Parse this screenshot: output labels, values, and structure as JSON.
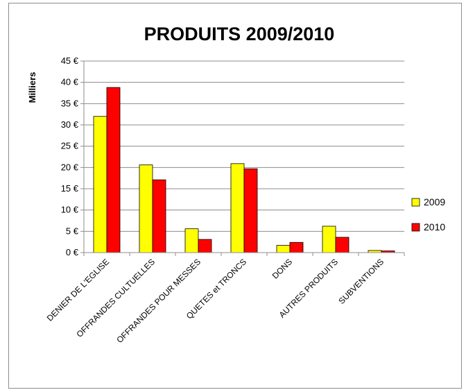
{
  "chart_data": {
    "type": "bar",
    "title": "PRODUITS 2009/2010",
    "ylabel": "Milliers",
    "xlabel": "",
    "ylim": [
      0,
      45
    ],
    "yticks": [
      0,
      5,
      10,
      15,
      20,
      25,
      30,
      35,
      40,
      45
    ],
    "ytick_suffix": " €",
    "grid": true,
    "legend_position": "right",
    "categories": [
      "DENIER DE L'EGLISE",
      "OFFRANDES CULTUELLES",
      "OFFRANDES POUR MESSES",
      "QUETES et TRONCS",
      "DONS",
      "AUTRES PRODUITS",
      "SUBVENTIONS"
    ],
    "series": [
      {
        "name": "2009",
        "color": "#ffff00",
        "values": [
          32.0,
          20.6,
          5.6,
          20.9,
          1.7,
          6.2,
          0.5
        ]
      },
      {
        "name": "2010",
        "color": "#ff0000",
        "values": [
          38.8,
          17.1,
          3.1,
          19.7,
          2.4,
          3.6,
          0.4
        ]
      }
    ]
  }
}
